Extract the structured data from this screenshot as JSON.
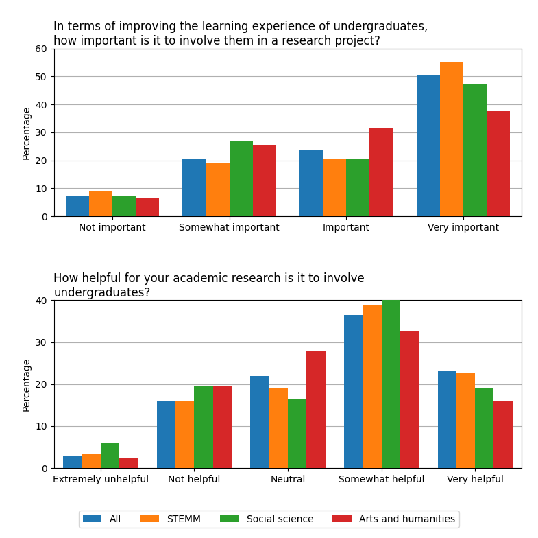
{
  "chart_data": [
    {
      "type": "bar",
      "title": "In terms of improving the learning experience of undergraduates,\nhow important is it to involve them in a research project?",
      "categories": [
        "Not important",
        "Somewhat important",
        "Important",
        "Very important"
      ],
      "series": [
        {
          "name": "All",
          "values": [
            7.5,
            20.5,
            23.5,
            50.5
          ]
        },
        {
          "name": "STEMM",
          "values": [
            9.0,
            19.0,
            20.5,
            55.0
          ]
        },
        {
          "name": "Social science",
          "values": [
            7.5,
            27.0,
            20.5,
            47.5
          ]
        },
        {
          "name": "Arts and humanities",
          "values": [
            6.5,
            25.5,
            31.5,
            37.5
          ]
        }
      ],
      "ylabel": "Percentage",
      "ylim": [
        0,
        60
      ],
      "yticks": [
        0,
        10,
        20,
        30,
        40,
        50,
        60
      ],
      "grid": true,
      "legend": "lower center"
    },
    {
      "type": "bar",
      "title": "How helpful for your academic research is it to involve\nundergraduates?",
      "categories": [
        "Extremely unhelpful",
        "Not helpful",
        "Neutral",
        "Somewhat helpful",
        "Very helpful"
      ],
      "series": [
        {
          "name": "All",
          "values": [
            3.0,
            16.0,
            22.0,
            36.5,
            23.0
          ]
        },
        {
          "name": "STEMM",
          "values": [
            3.5,
            16.0,
            19.0,
            39.0,
            22.5
          ]
        },
        {
          "name": "Social science",
          "values": [
            6.0,
            19.5,
            16.5,
            40.0,
            19.0
          ]
        },
        {
          "name": "Arts and humanities",
          "values": [
            2.5,
            19.5,
            28.0,
            32.5,
            16.0
          ]
        }
      ],
      "ylabel": "Percentage",
      "ylim": [
        0,
        40
      ],
      "yticks": [
        0,
        10,
        20,
        30,
        40
      ],
      "grid": true
    }
  ]
}
